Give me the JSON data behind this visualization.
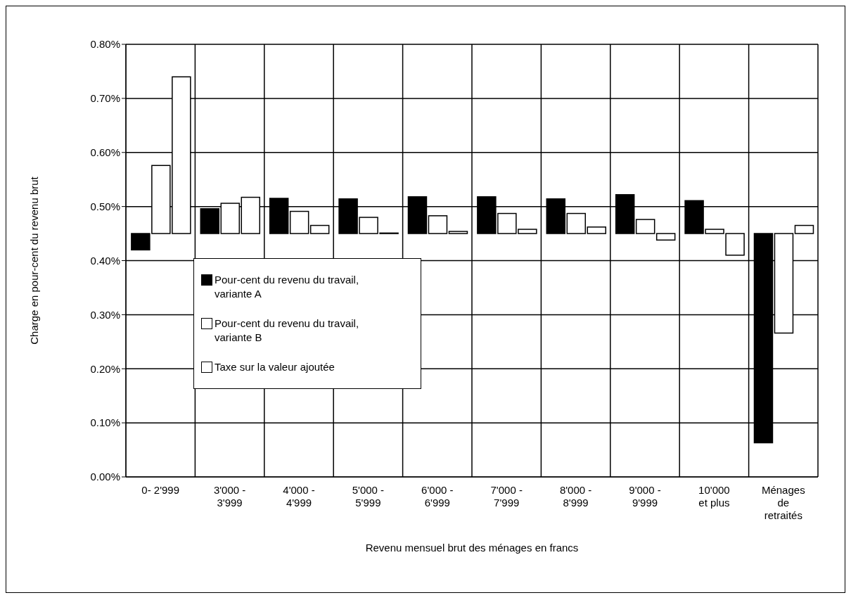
{
  "chart_data": {
    "type": "bar",
    "xlabel": "Revenu mensuel brut des ménages en francs",
    "ylabel": "Charge en pour-cent du revenu brut",
    "categories": [
      "0- 2'999",
      "3'000 - 3'999",
      "4'000 - 4'999",
      "5'000 - 5'999",
      "6'000 - 6'999",
      "7'000 - 7'999",
      "8'000 - 8'999",
      "9'000 - 9'999",
      "10'000 et plus",
      "Ménages de retraités"
    ],
    "series": [
      {
        "name": "Pour-cent du revenu du travail, variante A",
        "color": "#000000",
        "base": [
          0.45,
          0.45,
          0.45,
          0.45,
          0.45,
          0.45,
          0.45,
          0.45,
          0.45,
          0.45
        ],
        "values": [
          -0.03,
          0.046,
          0.065,
          0.064,
          0.068,
          0.068,
          0.064,
          0.072,
          0.061,
          -0.387
        ]
      },
      {
        "name": "Pour-cent du revenu du travail, variante B",
        "color": "#ffffff",
        "base": [
          0.45,
          0.45,
          0.45,
          0.45,
          0.45,
          0.45,
          0.45,
          0.45,
          0.45,
          0.45
        ],
        "values": [
          0.126,
          0.056,
          0.041,
          0.03,
          0.033,
          0.037,
          0.037,
          0.026,
          0.008,
          -0.184
        ]
      },
      {
        "name": "Taxe sur la valeur ajoutée",
        "color": "#ffffff",
        "base": [
          0.45,
          0.45,
          0.45,
          0.45,
          0.45,
          0.45,
          0.45,
          0.45,
          0.45,
          0.45
        ],
        "values": [
          0.29,
          0.067,
          0.015,
          0.001,
          0.004,
          0.008,
          0.012,
          -0.012,
          -0.04,
          0.015
        ]
      }
    ],
    "ylim": [
      0,
      0.8
    ],
    "yticks": [
      {
        "value": 0,
        "label": "0.00%"
      },
      {
        "value": 0.1,
        "label": "0.10%"
      },
      {
        "value": 0.2,
        "label": "0.20%"
      },
      {
        "value": 0.3,
        "label": "0.30%"
      },
      {
        "value": 0.4,
        "label": "0.40%"
      },
      {
        "value": 0.5,
        "label": "0.50%"
      },
      {
        "value": 0.6,
        "label": "0.60%"
      },
      {
        "value": 0.7,
        "label": "0.70%"
      },
      {
        "value": 0.8,
        "label": "0.80%"
      }
    ],
    "grid": true,
    "legend": "left"
  }
}
